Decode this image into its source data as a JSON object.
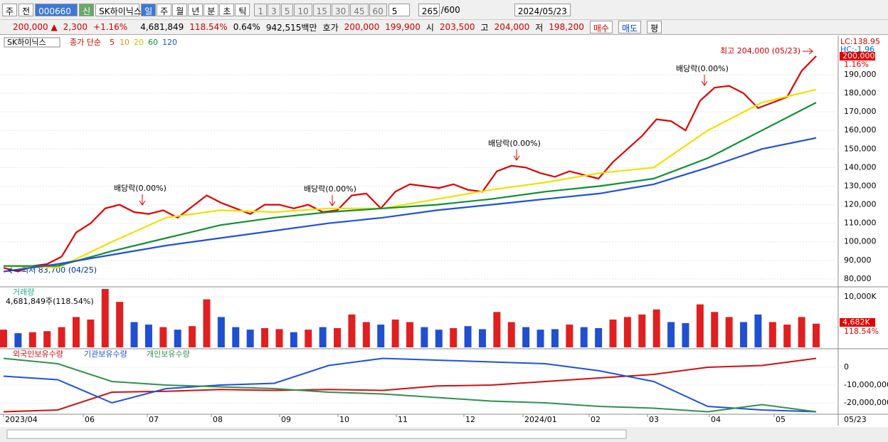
{
  "toolbar": {
    "period_type": "주",
    "prev": "전",
    "code": "000660",
    "signal": "신",
    "name": "SK하이닉스",
    "intervals": [
      "일",
      "주",
      "월",
      "년",
      "분",
      "초",
      "틱"
    ],
    "minutes": [
      "1",
      "3",
      "5",
      "10",
      "15",
      "30",
      "45",
      "60"
    ],
    "step": "5",
    "count": "265",
    "count_max": "/600",
    "date": "2024/05/23"
  },
  "quote": {
    "price": "200,000 ▲",
    "change": "2,300",
    "change_pct": "+1.16%",
    "volume": "4,681,849",
    "volume_ratio": "118.54%",
    "turnover": "0.64%",
    "amount": "942,515백만",
    "bid_label": "호가",
    "ask": "200,000",
    "bid": "199,900",
    "open_label": "시",
    "open": "203,500",
    "high_label": "고",
    "high": "204,000",
    "low_label": "저",
    "low": "198,200",
    "buy": "매수",
    "sell": "매도",
    "avg": "평"
  },
  "chart_data": [
    {
      "type": "line",
      "legend_name": "SK하이닉스",
      "legend_ma": "종가 단순",
      "legend_extra": "10",
      "series": [
        {
          "name": "5",
          "color": "#e00000",
          "values": [
            86000,
            84000,
            87000,
            88000,
            92000,
            105000,
            110000,
            118000,
            120000,
            116000,
            115000,
            117000,
            113000,
            119000,
            125000,
            121000,
            118000,
            115000,
            120000,
            120000,
            118000,
            120000,
            116000,
            117000,
            125000,
            126000,
            118000,
            127000,
            131000,
            130000,
            129000,
            131000,
            128000,
            127000,
            138000,
            141000,
            140000,
            137000,
            135000,
            138000,
            136000,
            134000,
            143000,
            150000,
            157000,
            166000,
            165000,
            160000,
            176000,
            183000,
            184000,
            180000,
            172000,
            175000,
            178000,
            192000,
            200000
          ]
        },
        {
          "name": "20",
          "color": "#f0e000",
          "values": [
            87000,
            86000,
            100000,
            113000,
            117000,
            116000,
            118000,
            118000,
            123000,
            128000,
            132000,
            137000,
            140000,
            160000,
            175000,
            182000
          ]
        },
        {
          "name": "60",
          "color": "#109030",
          "values": [
            87000,
            87000,
            95000,
            102000,
            109000,
            113000,
            116000,
            118000,
            120000,
            123000,
            127000,
            130000,
            134000,
            145000,
            160000,
            175000
          ]
        },
        {
          "name": "120",
          "color": "#2050e0",
          "values": [
            84000,
            88000,
            93000,
            98000,
            102000,
            106000,
            110000,
            113000,
            117000,
            120000,
            123000,
            126000,
            131000,
            140000,
            150000,
            156000
          ]
        }
      ],
      "ylim": [
        76900,
        210300
      ],
      "yticks": [
        {
          "value": 80000,
          "label": "80,000"
        },
        {
          "value": 90000,
          "label": "90,000"
        },
        {
          "value": 100000,
          "label": "100,000"
        },
        {
          "value": 110000,
          "label": "110,000"
        },
        {
          "value": 120000,
          "label": "120,000"
        },
        {
          "value": 130000,
          "label": "130,000"
        },
        {
          "value": 140000,
          "label": "140,000"
        },
        {
          "value": 150000,
          "label": "150,000"
        },
        {
          "value": 160000,
          "label": "160,000"
        },
        {
          "value": 170000,
          "label": "170,000"
        },
        {
          "value": 180000,
          "label": "180,000"
        },
        {
          "value": 190000,
          "label": "190,000"
        }
      ],
      "annotations": {
        "high": "최고 204,000 (05/23)",
        "low": "최저 83,700 (04/25)",
        "dividends": [
          "배당락(0.00%)",
          "배당락(0.00%)",
          "배당락(0.00%)",
          "배당락(0.00%)"
        ]
      },
      "side_labels": {
        "lc": "LC:138.95",
        "hc": "HC:-1.96",
        "last": "200,000",
        "last_pct": "1.16%"
      }
    },
    {
      "type": "bar",
      "title": "거래량",
      "subtitle": "4,681,849주(118.54%)",
      "values": [
        3500,
        2800,
        3000,
        3200,
        4000,
        6000,
        5500,
        12000,
        9000,
        5000,
        4500,
        4000,
        3500,
        4200,
        9500,
        6000,
        4000,
        3500,
        3800,
        3600,
        3000,
        3500,
        4000,
        3800,
        6500,
        5000,
        4500,
        5500,
        5000,
        4000,
        3500,
        3800,
        4200,
        3600,
        7000,
        5000,
        4000,
        3500,
        3600,
        4500,
        4000,
        3800,
        5500,
        6000,
        6500,
        7500,
        5000,
        4800,
        8500,
        7000,
        6000,
        5000,
        6500,
        5000,
        4500,
        6000,
        4682
      ],
      "ylim": [
        0,
        11550
      ],
      "yticks": [
        {
          "value": 10000,
          "label": "10,000K"
        }
      ],
      "last_label": "4,682K",
      "last_pct": "118.54%"
    },
    {
      "type": "line",
      "series": [
        {
          "name": "외국인보유수량",
          "color": "#d01010",
          "values": [
            -25000000,
            -24000000,
            -14000000,
            -13500000,
            -12500000,
            -13000000,
            -12500000,
            -13000000,
            -10500000,
            -10000000,
            -8000000,
            -6000000,
            -4000000,
            0,
            1000000,
            5000000
          ]
        },
        {
          "name": "기관보유수량",
          "color": "#2050e0",
          "values": [
            -5000000,
            -7000000,
            -20000000,
            -12000000,
            -10000000,
            -9000000,
            1000000,
            5000000,
            4000000,
            3000000,
            2000000,
            -2000000,
            -8000000,
            -22000000,
            -24000000,
            -25000000
          ]
        },
        {
          "name": "개인보유수량",
          "color": "#309050",
          "values": [
            5000000,
            2000000,
            -8000000,
            -10000000,
            -11000000,
            -12000000,
            -14000000,
            -15000000,
            -17000000,
            -19000000,
            -20000000,
            -22000000,
            -23000000,
            -25000000,
            -21000000,
            -25000000
          ]
        }
      ],
      "ylim": [
        -25600000,
        9600000
      ],
      "yticks": [
        0,
        {
          "value": -10000000,
          "label": "-10,000,000"
        },
        {
          "value": -20000000,
          "label": "-20,000,000"
        }
      ],
      "x_labels": [
        "2023/04",
        "06",
        "07",
        "08",
        "09",
        "10",
        "11",
        "12",
        "2024/01",
        "02",
        "03",
        "04",
        "05"
      ],
      "end_label": "05/23"
    }
  ]
}
